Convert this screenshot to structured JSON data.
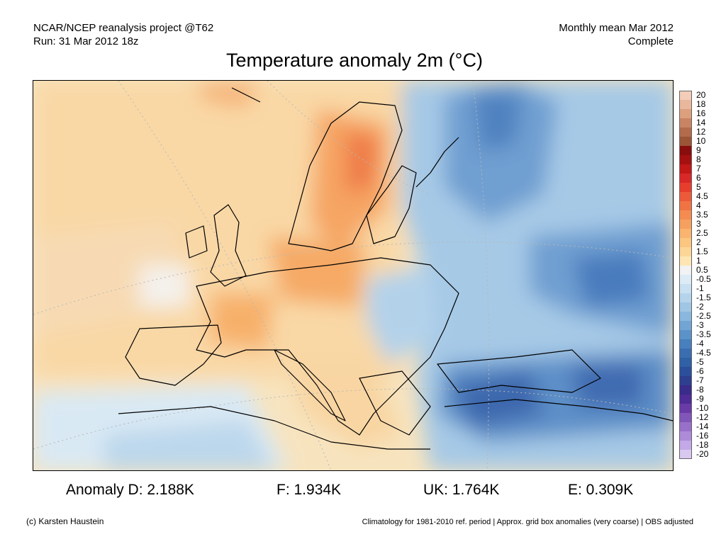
{
  "header": {
    "left_line1": "NCAR/NCEP reanalysis project @T62",
    "left_line2": "Run: 31 Mar 2012 18z",
    "right_line1": "Monthly mean Mar 2012",
    "right_line2": "Complete"
  },
  "title": "Temperature anomaly 2m (°C)",
  "colorbar": {
    "labels": [
      "20",
      "18",
      "16",
      "14",
      "12",
      "10",
      "9",
      "8",
      "7",
      "6",
      "5",
      "4.5",
      "4",
      "3.5",
      "3",
      "2.5",
      "2",
      "1.5",
      "1",
      "0.5",
      "-0.5",
      "-1",
      "-1.5",
      "-2",
      "-2.5",
      "-3",
      "-3.5",
      "-4",
      "-4.5",
      "-5",
      "-6",
      "-7",
      "-8",
      "-9",
      "-10",
      "-12",
      "-14",
      "-16",
      "-18",
      "-20"
    ],
    "colors": [
      "#f3cdb8",
      "#e9b89c",
      "#dca07f",
      "#c98463",
      "#b26b4b",
      "#9b5537",
      "#8a0d0d",
      "#a51010",
      "#c21818",
      "#d82828",
      "#e63d2d",
      "#ec5a3a",
      "#f07344",
      "#f48c52",
      "#f6a060",
      "#f9b46f",
      "#fbc680",
      "#fcd696",
      "#fde6b4",
      "#f2f2f2",
      "#dcebf6",
      "#c8e0f1",
      "#b5d4ec",
      "#a0c6e5",
      "#8ab7dd",
      "#72a5d3",
      "#5b93c8",
      "#4780bc",
      "#3a6eb1",
      "#3060a5",
      "#2b4f9b",
      "#2f3f8f",
      "#3a2c8a",
      "#4f2c96",
      "#6a3aa7",
      "#8255b8",
      "#9870c9",
      "#ad8bd9",
      "#c3a9e7",
      "#d9c9f1"
    ]
  },
  "stats": {
    "germany": "Anomaly D: 2.188K",
    "france": "F: 1.934K",
    "uk": "UK: 1.764K",
    "europe": "E: 0.309K"
  },
  "footer": {
    "credit": "(c) Karsten Haustein",
    "note": "Climatology for 1981-2010 ref. period | Approx. grid box anomalies (very coarse) | OBS adjusted"
  }
}
